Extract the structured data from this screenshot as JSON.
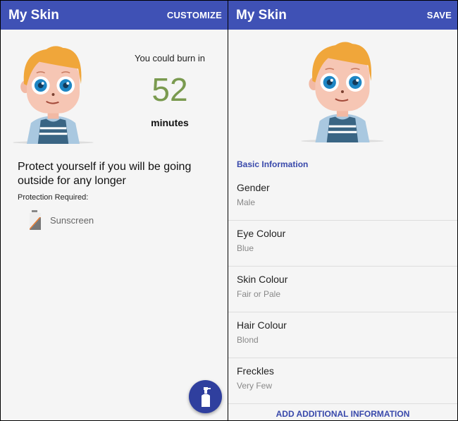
{
  "left": {
    "appbar": {
      "title": "My Skin",
      "action": "CUSTOMIZE"
    },
    "burn": {
      "label": "You could burn in",
      "value": "52",
      "unit": "minutes",
      "value_color": "#7a9a4f"
    },
    "message": "Protect yourself if you will be going outside for any longer",
    "protection_label": "Protection Required:",
    "protections": [
      {
        "icon": "sunscreen-icon",
        "label": "Sunscreen"
      }
    ],
    "fab_icon": "spray-bottle-icon"
  },
  "right": {
    "appbar": {
      "title": "My Skin",
      "action": "SAVE"
    },
    "section": "Basic Information",
    "items": [
      {
        "label": "Gender",
        "value": "Male"
      },
      {
        "label": "Eye Colour",
        "value": "Blue"
      },
      {
        "label": "Skin Colour",
        "value": "Fair or Pale"
      },
      {
        "label": "Hair Colour",
        "value": "Blond"
      },
      {
        "label": "Freckles",
        "value": "Very Few"
      }
    ],
    "add_button": "ADD ADDITIONAL INFORMATION"
  },
  "colors": {
    "primary": "#3f51b5",
    "accent": "#3949ab"
  }
}
